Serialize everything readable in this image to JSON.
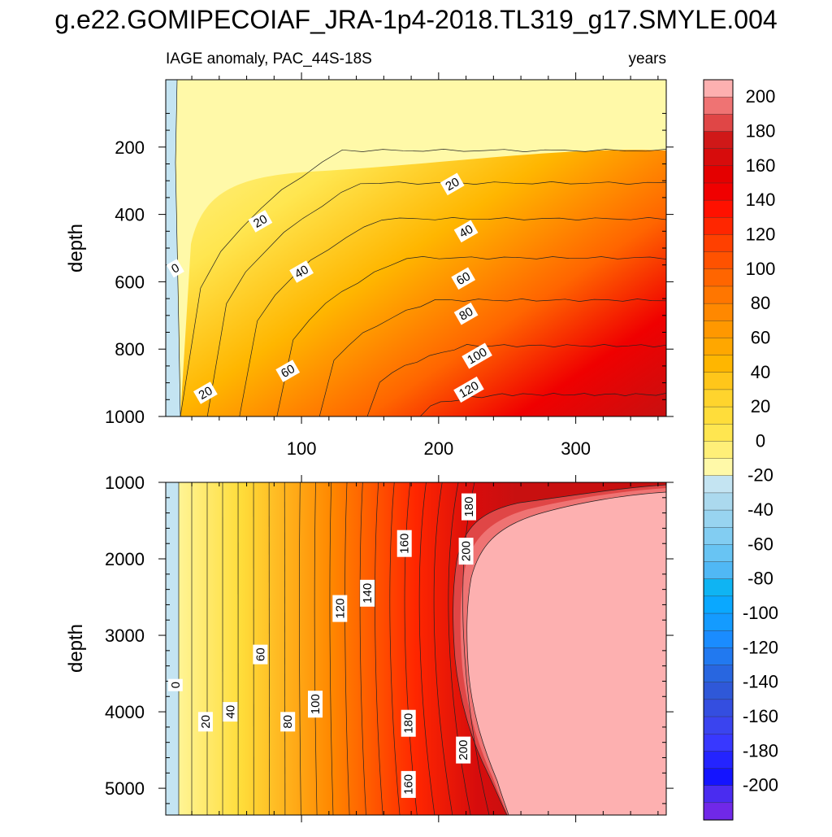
{
  "title": "g.e22.GOMIPECOIAF_JRA-1p4-2018.TL319_g17.SMYLE.004",
  "subtitle_left": "IAGE anomaly, PAC_44S-18S",
  "subtitle_right": "years",
  "chart_data": [
    {
      "type": "heatmap",
      "panel": "upper",
      "xlabel": "",
      "ylabel": "depth",
      "xlim": [
        1,
        366
      ],
      "ylim": [
        1000,
        0
      ],
      "x_ticks": [
        100,
        200,
        300
      ],
      "y_ticks": [
        200,
        400,
        600,
        800,
        1000
      ],
      "contour_interval": 10,
      "contour_labels": [
        {
          "value": "0",
          "x": 8,
          "y": 560
        },
        {
          "value": "20",
          "x": 30,
          "y": 930
        },
        {
          "value": "20",
          "x": 70,
          "y": 420
        },
        {
          "value": "20",
          "x": 210,
          "y": 310
        },
        {
          "value": "40",
          "x": 100,
          "y": 570
        },
        {
          "value": "40",
          "x": 220,
          "y": 450
        },
        {
          "value": "60",
          "x": 90,
          "y": 865
        },
        {
          "value": "60",
          "x": 218,
          "y": 590
        },
        {
          "value": "80",
          "x": 220,
          "y": 695
        },
        {
          "value": "100",
          "x": 228,
          "y": 820
        },
        {
          "value": "120",
          "x": 222,
          "y": 920
        }
      ]
    },
    {
      "type": "heatmap",
      "panel": "lower",
      "xlabel": "",
      "ylabel": "depth",
      "xlim": [
        1,
        366
      ],
      "ylim": [
        5350,
        1000
      ],
      "y_ticks": [
        1000,
        2000,
        3000,
        4000,
        5000
      ],
      "contour_interval": 10,
      "contour_labels": [
        {
          "value": "0",
          "x": 8,
          "y": 3650
        },
        {
          "value": "20",
          "x": 30,
          "y": 4130
        },
        {
          "value": "40",
          "x": 48,
          "y": 4000
        },
        {
          "value": "60",
          "x": 70,
          "y": 3250
        },
        {
          "value": "80",
          "x": 90,
          "y": 4130
        },
        {
          "value": "100",
          "x": 110,
          "y": 3900
        },
        {
          "value": "120",
          "x": 128,
          "y": 2650
        },
        {
          "value": "140",
          "x": 148,
          "y": 2450
        },
        {
          "value": "160",
          "x": 175,
          "y": 1800
        },
        {
          "value": "180",
          "x": 222,
          "y": 1320
        },
        {
          "value": "200",
          "x": 220,
          "y": 1900
        },
        {
          "value": "180",
          "x": 178,
          "y": 4150
        },
        {
          "value": "200",
          "x": 218,
          "y": 4500
        },
        {
          "value": "160",
          "x": 178,
          "y": 4950
        }
      ]
    }
  ],
  "colorbar": {
    "labels": [
      "200",
      "180",
      "160",
      "140",
      "120",
      "100",
      "80",
      "60",
      "40",
      "20",
      "0",
      "-20",
      "-40",
      "-60",
      "-80",
      "-100",
      "-120",
      "-140",
      "-160",
      "-180",
      "-200"
    ],
    "colors": [
      "#fdb0b0",
      "#ef7373",
      "#e04646",
      "#d01818",
      "#d70c0c",
      "#e40000",
      "#f00000",
      "#ff1100",
      "#ff2600",
      "#ff4000",
      "#ff5200",
      "#ff6500",
      "#ff7600",
      "#ff8800",
      "#ff9800",
      "#ffa700",
      "#ffb600",
      "#ffc61a",
      "#ffd42d",
      "#ffdd3a",
      "#ffe650",
      "#ffef78",
      "#fff9a8",
      "#c4e4f2",
      "#abd9ee",
      "#98d4f0",
      "#82cdf2",
      "#68c4f3",
      "#50b8f5",
      "#0fb4f3",
      "#0aa8ff",
      "#149bff",
      "#1a8cff",
      "#2179f0",
      "#2866e0",
      "#2f58d8",
      "#344ee0",
      "#3a44ef",
      "#3838ff",
      "#2424ff",
      "#1414ff",
      "#4a2cf0",
      "#7028e8"
    ]
  }
}
